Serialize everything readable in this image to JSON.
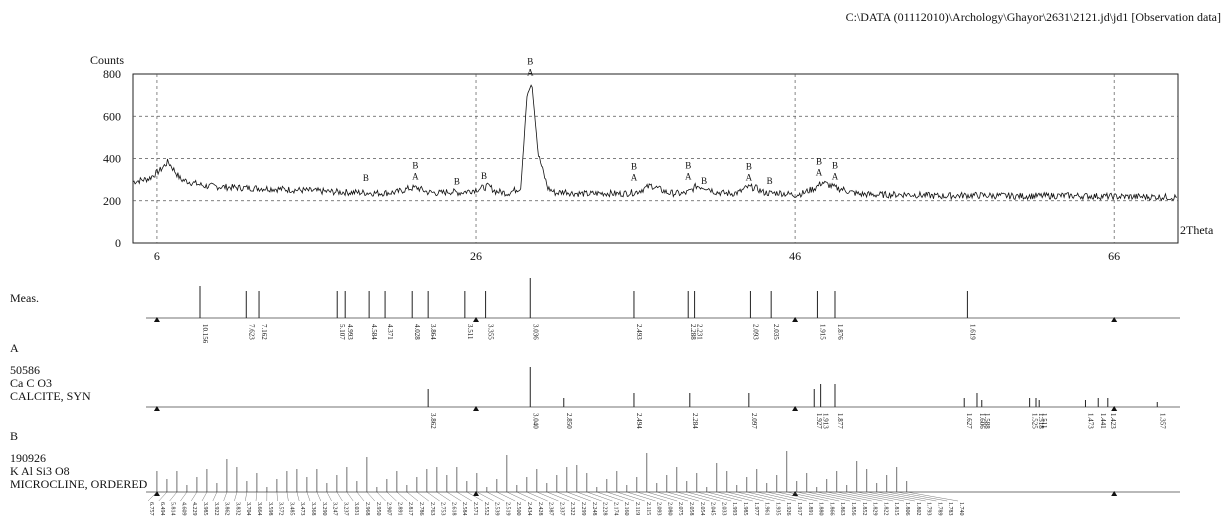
{
  "header": {
    "path": "C:\\DATA (01112010)\\Archology\\Ghayor\\2631\\2121.jd\\jd1 [Observation data]"
  },
  "chart_data": {
    "type": "line",
    "title": "",
    "ylabel": "Counts",
    "xlabel": "2Theta",
    "xlim": [
      4.5,
      70
    ],
    "ylim": [
      0,
      800
    ],
    "yticks": [
      0,
      200,
      400,
      600,
      800
    ],
    "xticks": [
      6,
      26,
      46,
      66
    ],
    "grid": true,
    "series": [
      {
        "x": [
          4.5,
          5.5,
          6.2,
          6.7,
          7.5,
          9,
          11,
          13,
          15,
          17,
          19,
          20,
          21,
          21.8,
          22.3,
          23,
          23.8,
          24.3,
          25,
          25.8,
          26.5,
          26.8,
          27.2,
          28,
          28.8,
          29.2,
          29.5,
          29.9,
          30.5,
          31,
          31.6,
          32,
          33,
          34,
          35,
          36,
          36.5,
          37,
          38,
          39,
          39.4,
          39.8,
          40.5,
          41,
          41.5,
          42,
          42.5,
          43,
          43.5,
          44,
          44.5,
          45,
          45.5,
          46,
          46.5,
          47.3,
          47.7,
          48.3,
          48.6,
          49,
          49.5,
          50,
          51,
          53,
          55,
          57,
          60,
          63,
          66,
          69,
          70
        ],
        "y": [
          290,
          305,
          345,
          385,
          300,
          270,
          262,
          258,
          250,
          242,
          238,
          236,
          240,
          258,
          262,
          240,
          236,
          244,
          238,
          250,
          262,
          270,
          245,
          236,
          262,
          700,
          755,
          420,
          260,
          236,
          244,
          236,
          232,
          236,
          233,
          240,
          256,
          272,
          238,
          233,
          244,
          270,
          262,
          242,
          236,
          234,
          240,
          264,
          262,
          240,
          235,
          238,
          232,
          228,
          236,
          262,
          288,
          268,
          260,
          254,
          240,
          232,
          228,
          230,
          222,
          226,
          222,
          224,
          220,
          218,
          216
        ]
      }
    ],
    "peak_labels": [
      {
        "x": 19.1,
        "y": 255,
        "text": "B"
      },
      {
        "x": 22.2,
        "y": 262,
        "text": "A"
      },
      {
        "x": 22.2,
        "y": 262,
        "text": "B"
      },
      {
        "x": 24.8,
        "y": 240,
        "text": "B"
      },
      {
        "x": 26.5,
        "y": 265,
        "text": "B"
      },
      {
        "x": 29.4,
        "y": 755,
        "text": "A"
      },
      {
        "x": 29.4,
        "y": 755,
        "text": "B"
      },
      {
        "x": 35.9,
        "y": 258,
        "text": "A"
      },
      {
        "x": 35.9,
        "y": 258,
        "text": "B"
      },
      {
        "x": 39.3,
        "y": 262,
        "text": "A"
      },
      {
        "x": 39.3,
        "y": 262,
        "text": "B"
      },
      {
        "x": 40.3,
        "y": 242,
        "text": "B"
      },
      {
        "x": 43.1,
        "y": 258,
        "text": "A"
      },
      {
        "x": 43.1,
        "y": 258,
        "text": "B"
      },
      {
        "x": 44.4,
        "y": 242,
        "text": "B"
      },
      {
        "x": 47.5,
        "y": 282,
        "text": "A"
      },
      {
        "x": 47.5,
        "y": 282,
        "text": "B"
      },
      {
        "x": 48.5,
        "y": 262,
        "text": "A"
      },
      {
        "x": 48.5,
        "y": 262,
        "text": "B"
      }
    ],
    "markers": [
      6,
      26,
      46,
      66
    ],
    "stick_patterns": [
      {
        "label": "Meas.",
        "lines": [
          {
            "x": 8.7,
            "h": 32,
            "d": "10.156"
          },
          {
            "x": 11.6,
            "h": 27,
            "d": "7.623"
          },
          {
            "x": 12.4,
            "h": 27,
            "d": "7.162"
          },
          {
            "x": 17.3,
            "h": 27,
            "d": "5.107"
          },
          {
            "x": 17.8,
            "h": 27,
            "d": "4.993"
          },
          {
            "x": 19.3,
            "h": 27,
            "d": "4.584"
          },
          {
            "x": 20.3,
            "h": 27,
            "d": "4.371"
          },
          {
            "x": 22.0,
            "h": 27,
            "d": "4.028"
          },
          {
            "x": 23.0,
            "h": 27,
            "d": "3.864"
          },
          {
            "x": 25.3,
            "h": 27,
            "d": "3.511"
          },
          {
            "x": 26.6,
            "h": 27,
            "d": "3.355"
          },
          {
            "x": 29.4,
            "h": 40,
            "d": "3.036"
          },
          {
            "x": 35.9,
            "h": 27,
            "d": "2.493"
          },
          {
            "x": 39.3,
            "h": 27,
            "d": "2.288"
          },
          {
            "x": 39.7,
            "h": 27,
            "d": "2.231"
          },
          {
            "x": 43.2,
            "h": 27,
            "d": "2.093"
          },
          {
            "x": 44.5,
            "h": 27,
            "d": "2.035"
          },
          {
            "x": 47.4,
            "h": 27,
            "d": "1.915"
          },
          {
            "x": 48.5,
            "h": 27,
            "d": "1.876"
          },
          {
            "x": 56.8,
            "h": 27,
            "d": "1.619"
          }
        ]
      },
      {
        "label": "A",
        "code": "50586",
        "formula": "Ca C O3",
        "name": "CALCITE, SYN",
        "lines": [
          {
            "x": 23.0,
            "h": 18,
            "d": "3.862"
          },
          {
            "x": 29.4,
            "h": 40,
            "d": "3.040"
          },
          {
            "x": 31.5,
            "h": 9,
            "d": "2.850"
          },
          {
            "x": 35.9,
            "h": 14,
            "d": "2.494"
          },
          {
            "x": 39.4,
            "h": 14,
            "d": "2.284"
          },
          {
            "x": 43.1,
            "h": 14,
            "d": "2.097"
          },
          {
            "x": 47.2,
            "h": 18,
            "d": "1.927"
          },
          {
            "x": 47.6,
            "h": 23,
            "d": "1.913"
          },
          {
            "x": 48.5,
            "h": 23,
            "d": "1.877"
          },
          {
            "x": 56.6,
            "h": 9,
            "d": "1.627"
          },
          {
            "x": 57.4,
            "h": 14,
            "d": "1.606"
          },
          {
            "x": 57.7,
            "h": 7,
            "d": "1.588"
          },
          {
            "x": 60.7,
            "h": 9,
            "d": "1.525"
          },
          {
            "x": 61.1,
            "h": 9,
            "d": "1.518"
          },
          {
            "x": 61.3,
            "h": 7,
            "d": "1.511"
          },
          {
            "x": 64.2,
            "h": 7,
            "d": "1.473"
          },
          {
            "x": 65.0,
            "h": 9,
            "d": "1.441"
          },
          {
            "x": 65.6,
            "h": 9,
            "d": "1.423"
          },
          {
            "x": 68.7,
            "h": 5,
            "d": "1.357"
          }
        ]
      },
      {
        "label": "B",
        "code": "190926",
        "formula": "K Al Si3 O8",
        "name": "MICROCLINE, ORDERED",
        "lines": [],
        "d_list": [
          "6.757",
          "6.494",
          "5.814",
          "4.609",
          "4.229",
          "3.985",
          "3.922",
          "3.862",
          "3.832",
          "3.704",
          "3.664",
          "3.598",
          "3.572",
          "3.485",
          "3.473",
          "3.368",
          "3.290",
          "3.247",
          "3.237",
          "3.031",
          "2.968",
          "2.950",
          "2.907",
          "2.891",
          "2.817",
          "2.786",
          "2.763",
          "2.753",
          "2.618",
          "2.584",
          "2.571",
          "2.552",
          "2.539",
          "2.519",
          "2.500",
          "2.434",
          "2.428",
          "2.387",
          "2.337",
          "2.322",
          "2.299",
          "2.248",
          "2.228",
          "2.174",
          "2.160",
          "2.119",
          "2.115",
          "2.093",
          "2.080",
          "2.075",
          "2.058",
          "2.054",
          "2.045",
          "2.033",
          "1.993",
          "1.985",
          "1.977",
          "1.961",
          "1.935",
          "1.926",
          "1.917",
          "1.891",
          "1.880",
          "1.866",
          "1.863",
          "1.856",
          "1.852",
          "1.829",
          "1.822",
          "1.815",
          "1.806",
          "1.802",
          "1.793",
          "1.789",
          "1.783",
          "1.740"
        ]
      }
    ]
  }
}
